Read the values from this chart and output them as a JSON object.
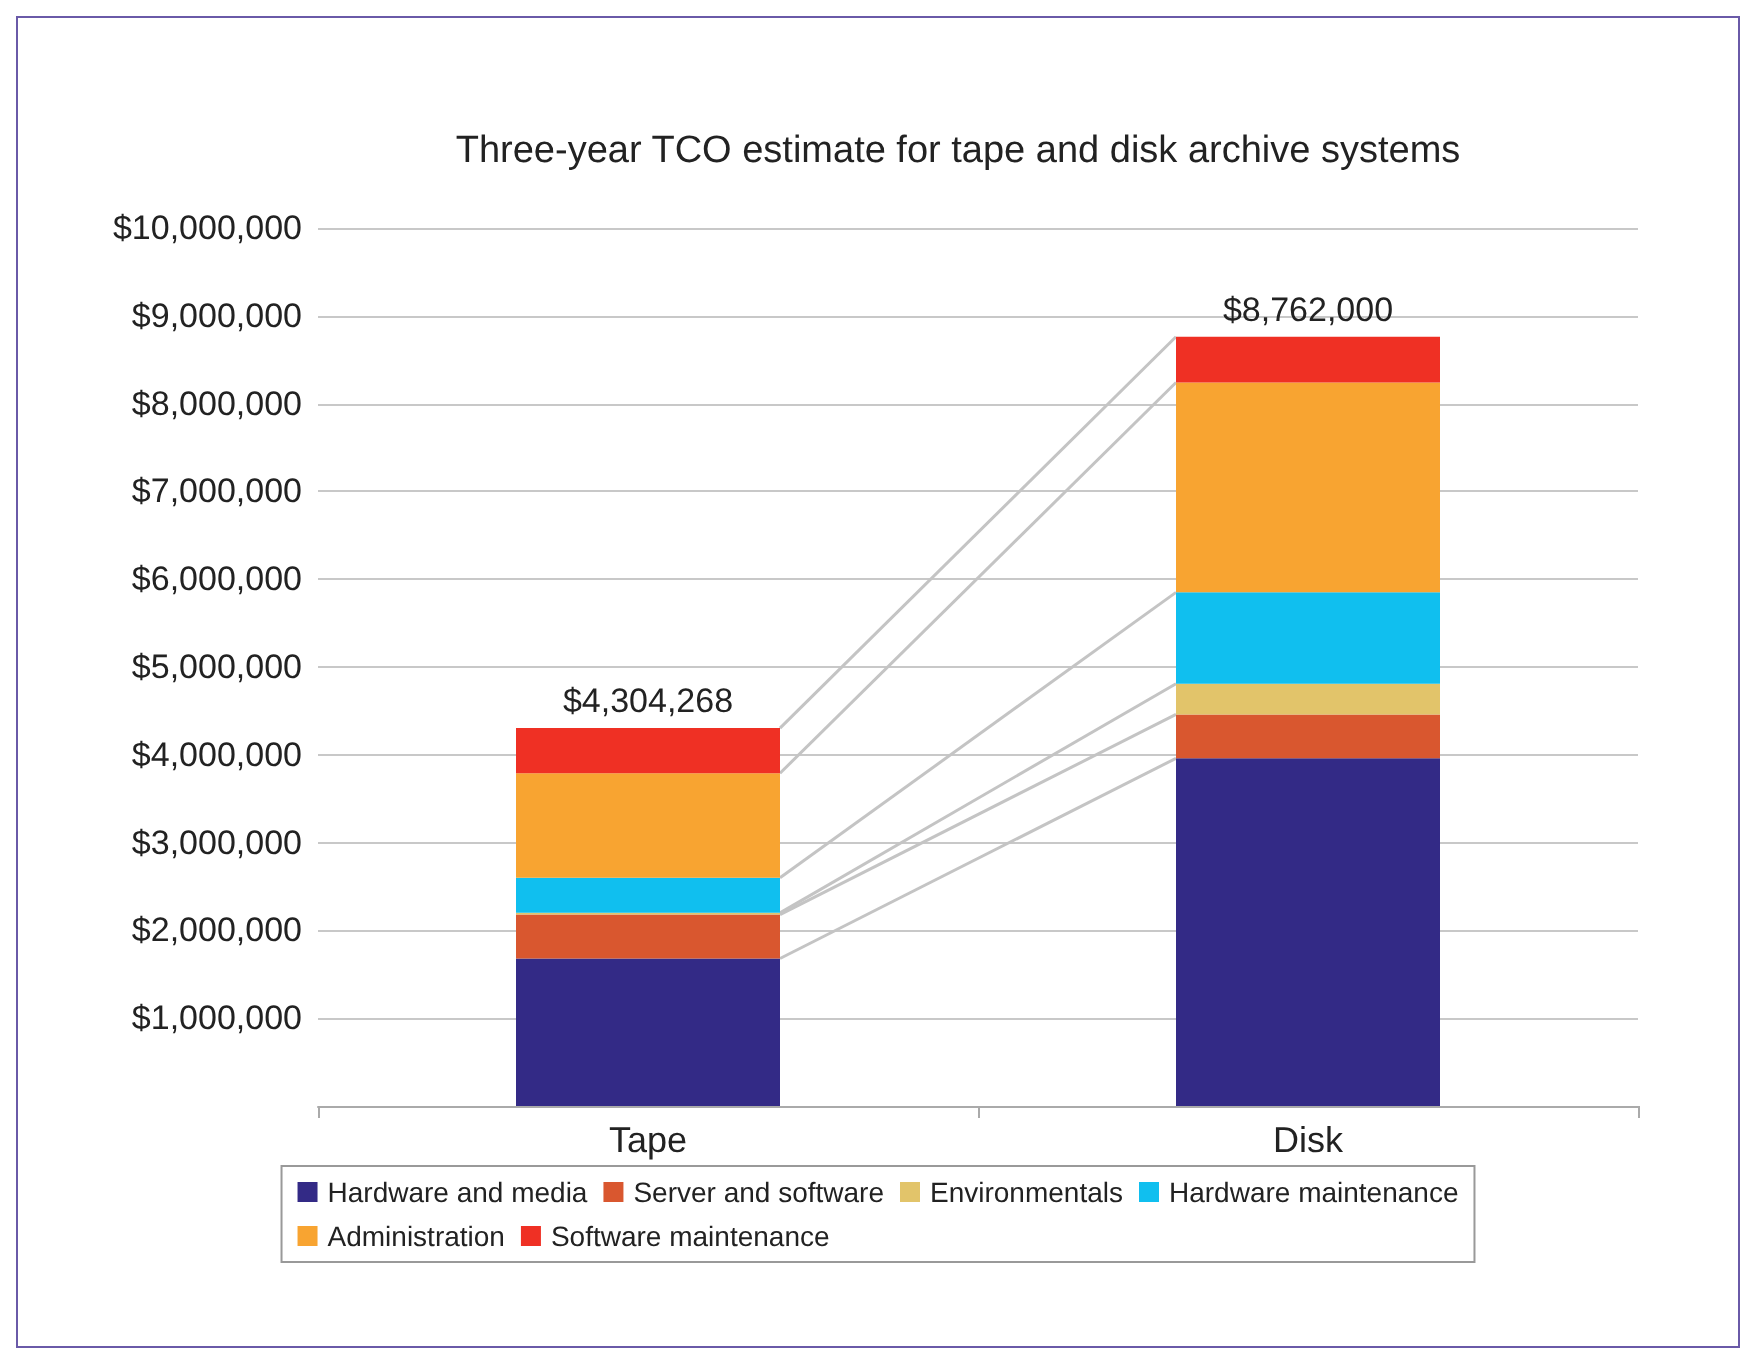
{
  "chart_data": {
    "type": "bar",
    "stacked": true,
    "title": "Three-year TCO estimate for tape and disk archive systems",
    "categories": [
      "Tape",
      "Disk"
    ],
    "series": [
      {
        "name": "Hardware and media",
        "color": "#332a86",
        "values": [
          1680000,
          3960000
        ]
      },
      {
        "name": "Server and software",
        "color": "#d9572f",
        "values": [
          500000,
          500000
        ]
      },
      {
        "name": "Environmentals",
        "color": "#e2c46a",
        "values": [
          20000,
          350000
        ]
      },
      {
        "name": "Hardware maintenance",
        "color": "#10bfef",
        "values": [
          400000,
          1040000
        ]
      },
      {
        "name": "Administration",
        "color": "#f8a431",
        "values": [
          1190000,
          2390000
        ]
      },
      {
        "name": "Software maintenance",
        "color": "#ef3024",
        "values": [
          514268,
          522000
        ]
      }
    ],
    "totals": [
      "$4,304,268",
      "$8,762,000"
    ],
    "ylim": [
      0,
      10000000
    ],
    "yticks": [
      {
        "value": 0,
        "label": null
      },
      {
        "value": 1000000,
        "label": "$1,000,000"
      },
      {
        "value": 2000000,
        "label": "$2,000,000"
      },
      {
        "value": 3000000,
        "label": "$3,000,000"
      },
      {
        "value": 4000000,
        "label": "$4,000,000"
      },
      {
        "value": 5000000,
        "label": "$5,000,000"
      },
      {
        "value": 6000000,
        "label": "$6,000,000"
      },
      {
        "value": 7000000,
        "label": "$7,000,000"
      },
      {
        "value": 8000000,
        "label": "$8,000,000"
      },
      {
        "value": 9000000,
        "label": "$9,000,000"
      },
      {
        "value": 10000000,
        "label": "$10,000,000"
      }
    ],
    "grid": "y",
    "legend": "bottom"
  }
}
